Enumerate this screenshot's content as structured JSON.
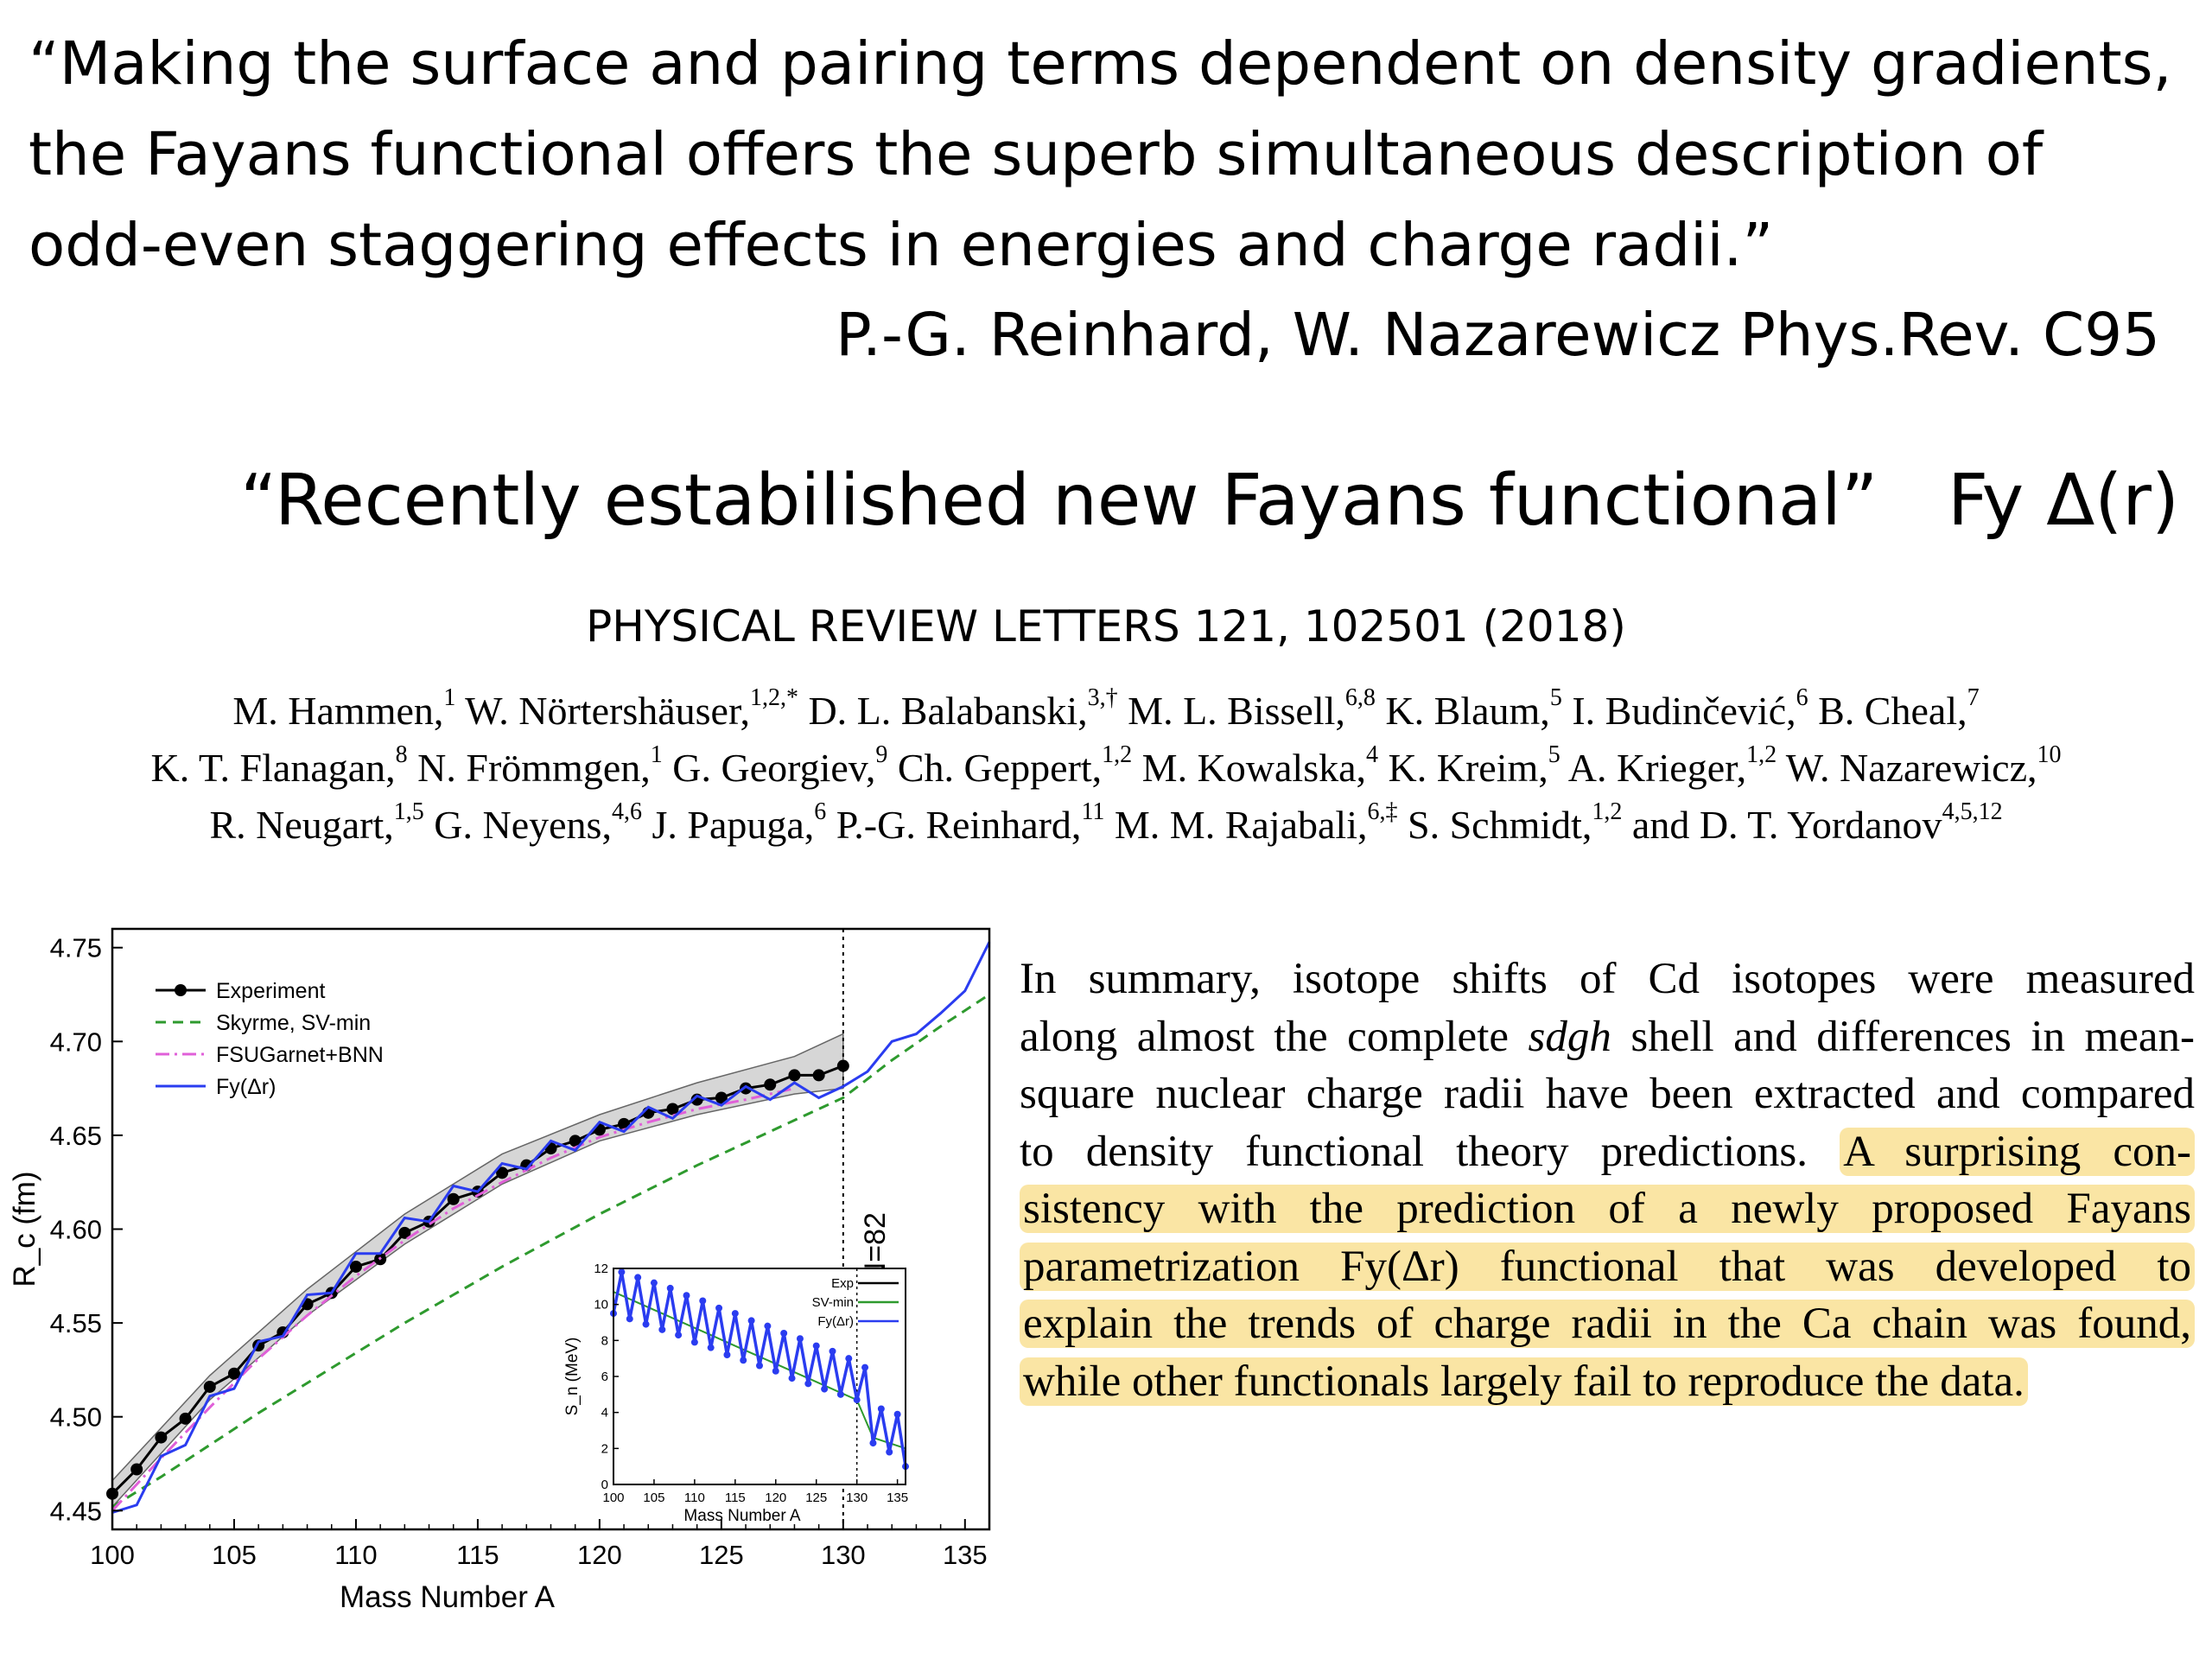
{
  "quote": {
    "lines": [
      "“Making the surface and pairing terms dependent on density gradients,",
      "the Fayans functional offers the superb simultaneous description of",
      "odd-even staggering effects in  energies and charge radii.”"
    ],
    "citation": "P.-G. Reinhard, W. Nazarewicz  Phys.Rev. C95"
  },
  "quote2": {
    "text": "“Recently estabilished new Fayans functional”",
    "symbol": "Fy Δ(r)"
  },
  "journal": "PHYSICAL REVIEW LETTERS 121, 102501 (2018)",
  "authors": [
    [
      {
        "name": "M. Hammen,",
        "sup": "1"
      },
      {
        "name": "W. Nörtershäuser,",
        "sup": "1,2,*"
      },
      {
        "name": "D. L. Balabanski,",
        "sup": "3,†"
      },
      {
        "name": "M. L. Bissell,",
        "sup": "6,8"
      },
      {
        "name": "K. Blaum,",
        "sup": "5"
      },
      {
        "name": "I. Budinčević,",
        "sup": "6"
      },
      {
        "name": "B. Cheal,",
        "sup": "7"
      }
    ],
    [
      {
        "name": "K. T. Flanagan,",
        "sup": "8"
      },
      {
        "name": "N. Frömmgen,",
        "sup": "1"
      },
      {
        "name": "G. Georgiev,",
        "sup": "9"
      },
      {
        "name": "Ch. Geppert,",
        "sup": "1,2"
      },
      {
        "name": "M. Kowalska,",
        "sup": "4"
      },
      {
        "name": "K. Kreim,",
        "sup": "5"
      },
      {
        "name": "A. Krieger,",
        "sup": "1,2"
      },
      {
        "name": "W. Nazarewicz,",
        "sup": "10"
      }
    ],
    [
      {
        "name": "R. Neugart,",
        "sup": "1,5"
      },
      {
        "name": "G. Neyens,",
        "sup": "4,6"
      },
      {
        "name": "J. Papuga,",
        "sup": "6"
      },
      {
        "name": "P.-G. Reinhard,",
        "sup": "11"
      },
      {
        "name": "M. M. Rajabali,",
        "sup": "6,‡"
      },
      {
        "name": "S. Schmidt,",
        "sup": "1,2"
      },
      {
        "name": "and D. T. Yordanov",
        "sup": "4,5,12"
      }
    ]
  ],
  "summary": {
    "lines": [
      [
        {
          "t": "In summary, isotope shifts of Cd isotopes were measured"
        }
      ],
      [
        {
          "t": "along almost the complete "
        },
        {
          "t": "sdgh",
          "i": true
        },
        {
          "t": " shell and differences in mean-"
        }
      ],
      [
        {
          "t": "square nuclear charge radii have been extracted and compared"
        }
      ],
      [
        {
          "t": "to density functional theory predictions. "
        },
        {
          "t": "A surprising con-",
          "h": true
        }
      ],
      [
        {
          "t": "sistency with the prediction of a newly proposed Fayans",
          "h": true
        }
      ],
      [
        {
          "t": "parametrization Fy(Δr) functional that was developed to",
          "h": true
        }
      ],
      [
        {
          "t": "explain the trends of charge radii in the Ca chain was found,",
          "h": true
        }
      ],
      [
        {
          "t": "while other functionals largely fail to reproduce the data.",
          "h": true
        }
      ]
    ]
  },
  "chart_data": [
    {
      "type": "line",
      "xlabel": "Mass Number A",
      "ylabel": "R_c (fm)",
      "xlim": [
        100,
        136
      ],
      "ylim": [
        4.44,
        4.76
      ],
      "xticks": [
        100,
        105,
        110,
        115,
        120,
        125,
        130,
        135
      ],
      "yticks": [
        4.45,
        4.5,
        4.55,
        4.6,
        4.65,
        4.7,
        4.75
      ],
      "annotation": {
        "text": "N=82",
        "x": 130
      },
      "legend_position": "top-left",
      "series": [
        {
          "name": "Experiment",
          "color": "#000000",
          "style": "solid-markers",
          "x": [
            100,
            101,
            102,
            103,
            104,
            105,
            106,
            107,
            108,
            109,
            110,
            111,
            112,
            113,
            114,
            115,
            116,
            117,
            118,
            119,
            120,
            121,
            122,
            123,
            124,
            125,
            126,
            127,
            128,
            129,
            130
          ],
          "y": [
            4.459,
            4.472,
            4.489,
            4.499,
            4.516,
            4.523,
            4.538,
            4.545,
            4.56,
            4.566,
            4.58,
            4.584,
            4.598,
            4.604,
            4.616,
            4.62,
            4.63,
            4.634,
            4.643,
            4.647,
            4.653,
            4.656,
            4.662,
            4.664,
            4.669,
            4.67,
            4.675,
            4.677,
            4.682,
            4.682,
            4.687
          ]
        },
        {
          "name": "Skyrme, SV-min",
          "color": "#2e9a2e",
          "style": "dashed",
          "x": [
            100,
            102,
            104,
            106,
            108,
            110,
            112,
            114,
            116,
            118,
            120,
            122,
            124,
            126,
            128,
            130,
            132,
            134,
            136
          ],
          "y": [
            4.452,
            4.468,
            4.485,
            4.502,
            4.518,
            4.534,
            4.55,
            4.565,
            4.58,
            4.594,
            4.608,
            4.621,
            4.634,
            4.646,
            4.658,
            4.67,
            4.69,
            4.708,
            4.725
          ]
        },
        {
          "name": "FSUGarnet+BNN",
          "color": "#e060d8",
          "style": "dashdot",
          "x": [
            100,
            102,
            104,
            106,
            108,
            110,
            112,
            114,
            116,
            118,
            120,
            122,
            124,
            126,
            128
          ],
          "y": [
            4.45,
            4.478,
            4.505,
            4.531,
            4.554,
            4.575,
            4.594,
            4.611,
            4.625,
            4.638,
            4.649,
            4.657,
            4.664,
            4.669,
            4.675
          ]
        },
        {
          "name": "Fy(Δr)",
          "color": "#2a3cf0",
          "style": "solid",
          "x": [
            100,
            101,
            102,
            103,
            104,
            105,
            106,
            107,
            108,
            109,
            110,
            111,
            112,
            113,
            114,
            115,
            116,
            117,
            118,
            119,
            120,
            121,
            122,
            123,
            124,
            125,
            126,
            127,
            128,
            129,
            130,
            131,
            132,
            133,
            134,
            135,
            136
          ],
          "y": [
            4.449,
            4.453,
            4.479,
            4.485,
            4.511,
            4.515,
            4.54,
            4.543,
            4.565,
            4.566,
            4.587,
            4.587,
            4.606,
            4.604,
            4.623,
            4.62,
            4.635,
            4.632,
            4.647,
            4.642,
            4.657,
            4.652,
            4.665,
            4.659,
            4.671,
            4.666,
            4.676,
            4.669,
            4.678,
            4.67,
            4.676,
            4.684,
            4.7,
            4.704,
            4.715,
            4.727,
            4.753
          ]
        }
      ],
      "band": {
        "x": [
          100,
          104,
          108,
          112,
          116,
          120,
          124,
          128,
          130
        ],
        "upper": [
          4.466,
          4.522,
          4.568,
          4.608,
          4.64,
          4.661,
          4.678,
          4.692,
          4.704
        ],
        "lower": [
          4.452,
          4.509,
          4.554,
          4.592,
          4.624,
          4.647,
          4.661,
          4.672,
          4.675
        ]
      }
    },
    {
      "type": "line",
      "xlabel": "Mass Number A",
      "ylabel": "S_n (MeV)",
      "xlim": [
        100,
        136
      ],
      "ylim": [
        0,
        12
      ],
      "xticks": [
        100,
        105,
        110,
        115,
        120,
        125,
        130,
        135
      ],
      "yticks": [
        0,
        2,
        4,
        6,
        8,
        10,
        12
      ],
      "legend_position": "top-right",
      "series": [
        {
          "name": "Exp",
          "color": "#000000",
          "x": [
            100,
            101,
            102,
            103,
            104,
            105,
            106,
            107,
            108,
            109,
            110,
            111,
            112,
            113,
            114,
            115,
            116,
            117,
            118,
            119,
            120,
            121,
            122,
            123,
            124,
            125,
            126,
            127,
            128,
            129,
            130
          ],
          "y": [
            9.8,
            11.6,
            9.4,
            11.3,
            9.1,
            11.0,
            8.8,
            10.7,
            8.5,
            10.3,
            8.1,
            10.0,
            7.8,
            9.6,
            7.4,
            9.3,
            7.1,
            8.9,
            6.8,
            8.6,
            6.5,
            8.2,
            6.1,
            7.9,
            5.8,
            7.5,
            5.5,
            7.2,
            5.2,
            6.8,
            4.9
          ]
        },
        {
          "name": "SV-min",
          "color": "#2e9a2e",
          "x": [
            100,
            102,
            104,
            106,
            108,
            110,
            112,
            114,
            116,
            118,
            120,
            122,
            124,
            126,
            128,
            130,
            132,
            134,
            136
          ],
          "y": [
            10.7,
            10.3,
            9.9,
            9.5,
            9.1,
            8.7,
            8.3,
            7.9,
            7.5,
            7.1,
            6.7,
            6.3,
            5.9,
            5.5,
            5.1,
            4.7,
            2.6,
            2.3,
            2.0
          ]
        },
        {
          "name": "Fy(Δr)",
          "color": "#2a3cf0",
          "x": [
            100,
            101,
            102,
            103,
            104,
            105,
            106,
            107,
            108,
            109,
            110,
            111,
            112,
            113,
            114,
            115,
            116,
            117,
            118,
            119,
            120,
            121,
            122,
            123,
            124,
            125,
            126,
            127,
            128,
            129,
            130,
            131,
            132,
            133,
            134,
            135,
            136
          ],
          "y": [
            9.5,
            11.8,
            9.2,
            11.5,
            8.9,
            11.2,
            8.6,
            10.9,
            8.3,
            10.5,
            7.9,
            10.2,
            7.6,
            9.8,
            7.2,
            9.5,
            6.9,
            9.1,
            6.6,
            8.8,
            6.3,
            8.4,
            5.9,
            8.1,
            5.6,
            7.7,
            5.3,
            7.4,
            5.0,
            7.0,
            4.7,
            6.5,
            2.3,
            4.2,
            1.8,
            3.9,
            1.0
          ]
        }
      ]
    }
  ]
}
